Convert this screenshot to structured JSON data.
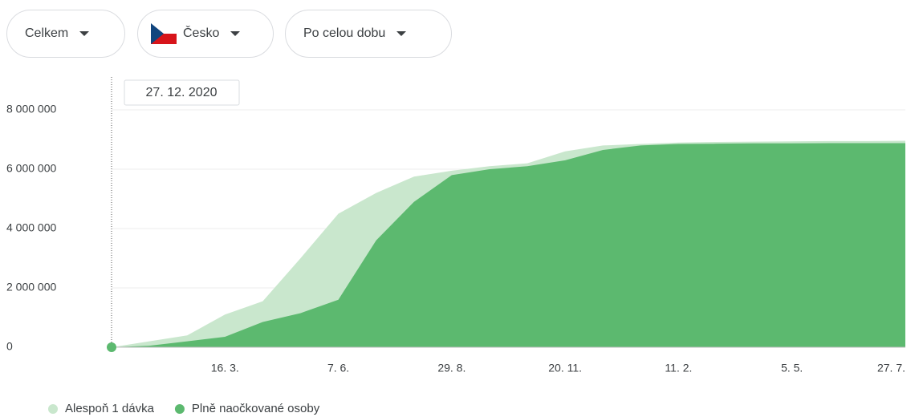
{
  "filters": [
    "Celkem",
    "Česko",
    "Po celou dobu"
  ],
  "chart_data": {
    "type": "area",
    "tooltip": "27. 12. 2020",
    "categories": [
      null,
      null,
      null,
      "16. 3.",
      null,
      null,
      "7. 6.",
      null,
      null,
      "29. 8.",
      null,
      null,
      "20. 11.",
      null,
      null,
      "11. 2.",
      null,
      null,
      "5. 5.",
      null,
      null,
      "27. 7."
    ],
    "series": [
      {
        "name": "Alespoň 1 dávka",
        "color": "#c9e7cd",
        "values": [
          0,
          200000,
          400000,
          1100000,
          1550000,
          3000000,
          4500000,
          5200000,
          5750000,
          5950000,
          6100000,
          6200000,
          6600000,
          6800000,
          6850000,
          6900000,
          6920000,
          6930000,
          6940000,
          6950000,
          6950000,
          6960000
        ]
      },
      {
        "name": "Plně naočkované osoby",
        "color": "#5cb96f",
        "values": [
          0,
          50000,
          200000,
          350000,
          850000,
          1150000,
          1600000,
          3600000,
          4900000,
          5800000,
          6000000,
          6100000,
          6300000,
          6650000,
          6800000,
          6850000,
          6860000,
          6870000,
          6870000,
          6880000,
          6880000,
          6880000
        ]
      }
    ],
    "ylim": [
      0,
      8000000
    ],
    "yticks": [
      0,
      {
        "value": 2000000,
        "label": "2 000 000"
      },
      {
        "value": 4000000,
        "label": "4 000 000"
      },
      {
        "value": 6000000,
        "label": "6 000 000"
      },
      {
        "value": 8000000,
        "label": "8 000 000"
      }
    ],
    "grid": true
  }
}
